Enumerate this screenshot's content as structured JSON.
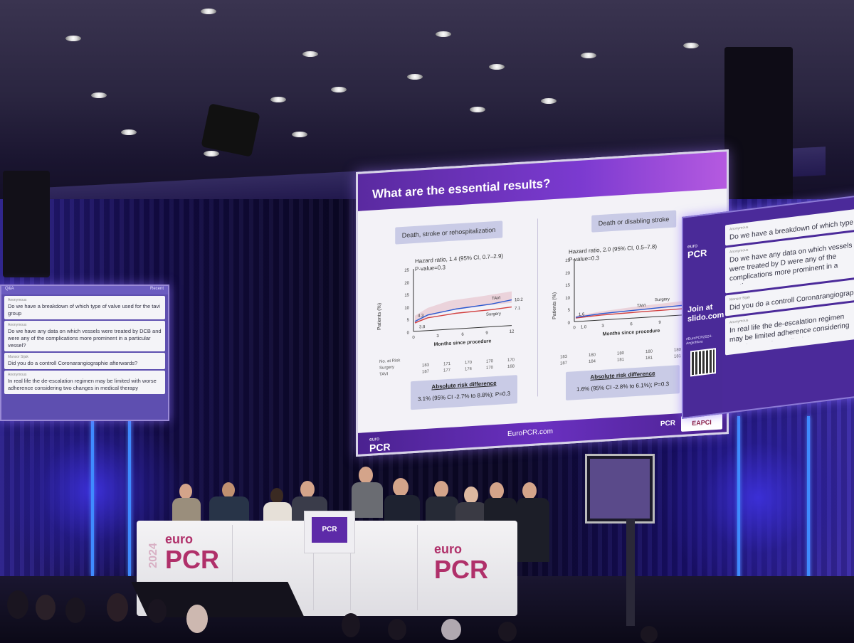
{
  "slide": {
    "title": "What are the essential results?",
    "left_panel": {
      "heading": "Death, stroke or rehospitalization",
      "hazard_line1": "Hazard ratio, 1.4 (95% CI, 0.7–2.9)",
      "hazard_line2": "P-value=0.3",
      "y_label": "Patients (%)",
      "x_label": "Months since procedure",
      "y_ticks": [
        "25",
        "20",
        "15",
        "10",
        "5",
        "0"
      ],
      "x_ticks": [
        "0",
        "3",
        "6",
        "9",
        "12"
      ],
      "series_labels": [
        "TAVI",
        "Surgery"
      ],
      "end_values": [
        "10.2",
        "7.1"
      ],
      "start_values": [
        "4.3",
        "3.8"
      ],
      "risk_header": "No. at Risk",
      "risk_rows": [
        {
          "label": "Surgery",
          "values": [
            "183",
            "171",
            "170",
            "170",
            "170"
          ]
        },
        {
          "label": "TAVI",
          "values": [
            "187",
            "177",
            "174",
            "170",
            "168"
          ]
        }
      ],
      "abs_title": "Absolute risk difference",
      "abs_value": "3.1% (95% CI -2.7% to 8.8%); P=0.3"
    },
    "right_panel": {
      "heading": "Death or disabling stroke",
      "hazard_line1": "Hazard ratio, 2.0 (95% CI, 0.5–7.8)",
      "hazard_line2": "P-value=0.3",
      "y_label": "Patients (%)",
      "x_label": "Months since procedure",
      "y_ticks": [
        "25",
        "20",
        "15",
        "10",
        "5",
        "0"
      ],
      "x_ticks": [
        "0",
        "3",
        "6",
        "9",
        "12"
      ],
      "x_extra_tick": "1.0",
      "series_labels": [
        "TAVI",
        "Surgery"
      ],
      "start_value": "1.6",
      "risk_rows": [
        {
          "values": [
            "183",
            "180",
            "180",
            "180",
            "180"
          ]
        },
        {
          "values": [
            "187",
            "184",
            "181",
            "181",
            "181"
          ]
        }
      ],
      "abs_title": "Absolute risk difference",
      "abs_value": "1.6% (95% CI -2.8% to 6.1%); P=0.3"
    },
    "footer": {
      "logo_small": "euro",
      "logo": "PCR",
      "url": "EuroPCR.com",
      "pcr": "PCR",
      "eapci": "EAPCI"
    }
  },
  "left_screen": {
    "tab": "Q&A",
    "sort": "Recent",
    "questions": [
      {
        "author": "Anonymous",
        "text": "Do we have a breakdown of which type of valve used for the tavi group"
      },
      {
        "author": "Anonymous",
        "text": "Do we have any data on which vessels were treated by DCB and were any of the complications more prominent in a particular vessel?"
      },
      {
        "author": "Mansor Sijak",
        "text": "Did you do a controll Coronarangiographie afterwards?"
      },
      {
        "author": "Anonymous",
        "text": "In real life the de-escalation regimen may be limited with worse adherence considering two changes in medical therapy"
      }
    ]
  },
  "right_screen": {
    "logo_small": "euro",
    "logo": "PCR",
    "join_line1": "Join at",
    "join_line2": "slido.com",
    "hashtag": "#EuroPCR2024-Angiohkou",
    "questions": [
      {
        "author": "Anonymous",
        "text": "Do we have a breakdown of which type of valve used"
      },
      {
        "author": "Anonymous",
        "text": "Do we have any data on which vessels were treated by D were any of the complications more prominent in a particu"
      },
      {
        "author": "Mansor Sijak",
        "text": "Did you do a controll Coronarangiographie afterward"
      },
      {
        "author": "Anonymous",
        "text": "In real life the de-escalation regimen may be limited adherence considering two changes in medical ther"
      }
    ]
  },
  "stage": {
    "desk_logo_small": "euro",
    "desk_logo": "PCR",
    "desk_year": "2024",
    "podium_logo": "PCR"
  }
}
